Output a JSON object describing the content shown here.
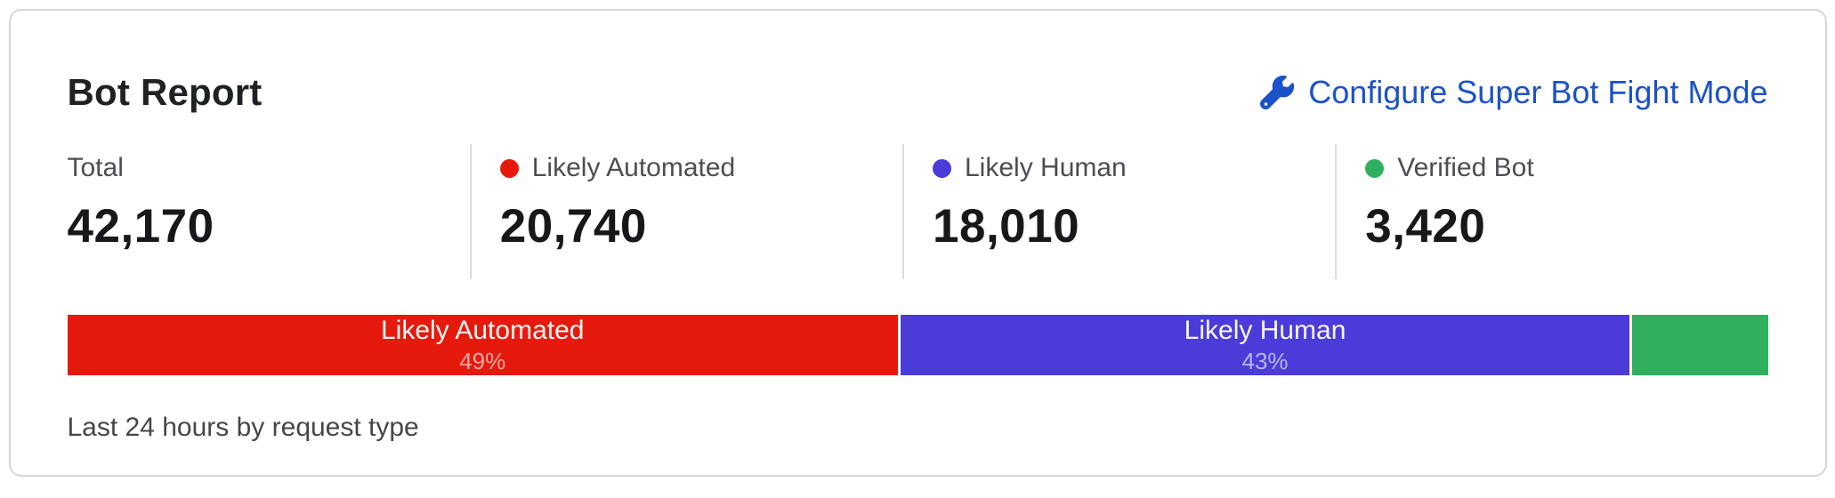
{
  "card": {
    "title": "Bot Report",
    "link": {
      "label": "Configure Super Bot Fight Mode",
      "icon": "wrench-icon",
      "color": "#1b52c9"
    },
    "stats": [
      {
        "label": "Total",
        "value": "42,170",
        "dot_color": null
      },
      {
        "label": "Likely Automated",
        "value": "20,740",
        "dot_color": "#e51a0d"
      },
      {
        "label": "Likely Human",
        "value": "18,010",
        "dot_color": "#4b3cda"
      },
      {
        "label": "Verified Bot",
        "value": "3,420",
        "dot_color": "#2fb05e"
      }
    ],
    "caption": "Last 24 hours by request type"
  },
  "chart_data": {
    "type": "bar",
    "orientation": "horizontal-stacked",
    "title": "Bot Report",
    "subtitle": "Last 24 hours by request type",
    "total": 42170,
    "categories": [
      "Likely Automated",
      "Likely Human",
      "Verified Bot"
    ],
    "values": [
      20740,
      18010,
      3420
    ],
    "segments": [
      {
        "label": "Likely Automated",
        "value": 20740,
        "percent": 49,
        "percent_label": "49%",
        "color": "#e51a0d",
        "show_text": true
      },
      {
        "label": "Likely Human",
        "value": 18010,
        "percent": 43,
        "percent_label": "43%",
        "color": "#4b3cda",
        "show_text": true
      },
      {
        "label": "Verified Bot",
        "value": 3420,
        "percent": 8,
        "percent_label": "8%",
        "color": "#2fb05e",
        "show_text": false
      }
    ]
  }
}
